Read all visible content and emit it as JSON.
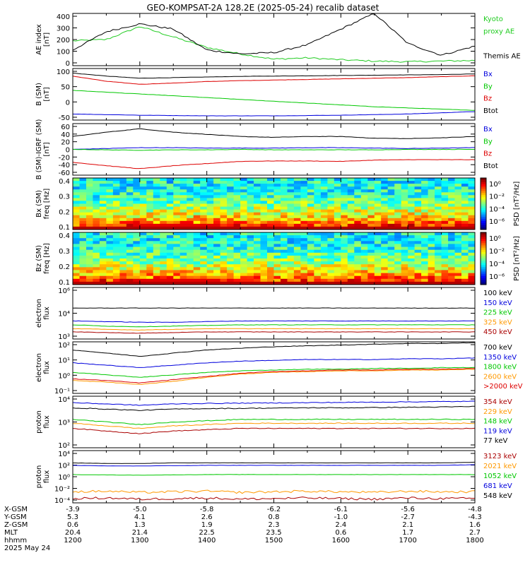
{
  "title": "GEO-KOMPSAT-2A 128.2E (2025-05-24) recalib dataset",
  "colors": {
    "black": "#000000",
    "blue": "#0000dd",
    "green": "#00c800",
    "red": "#dd0000",
    "orange": "#ff9900",
    "darkred": "#aa0000",
    "kyoto": "#22cc22"
  },
  "panels": [
    {
      "id": "ae",
      "ylabel": [
        "AE index",
        "[nT]"
      ],
      "ticks": [
        "400",
        "300",
        "200",
        "100",
        "0"
      ],
      "legend": [
        {
          "text": "Kyoto",
          "color": "kyoto"
        },
        {
          "text": "proxy AE",
          "color": "kyoto"
        },
        {
          "text": "",
          "color": "black"
        },
        {
          "text": "Themis AE",
          "color": "black"
        }
      ]
    },
    {
      "id": "bsm",
      "ylabel": [
        "B (SM)",
        "[nT]"
      ],
      "ticks": [
        "100",
        "50",
        "0",
        "-50"
      ],
      "legend": [
        {
          "text": "Bx",
          "color": "blue"
        },
        {
          "text": "By",
          "color": "green"
        },
        {
          "text": "Bz",
          "color": "red"
        },
        {
          "text": "Btot",
          "color": "black"
        }
      ]
    },
    {
      "id": "bigrf",
      "ylabel": [
        "B (SM)-IGRF (SM)",
        "[nT]"
      ],
      "ticks": [
        "60",
        "40",
        "20",
        "0",
        "-20",
        "-40",
        "-60"
      ],
      "legend": [
        {
          "text": "Bx",
          "color": "blue"
        },
        {
          "text": "By",
          "color": "green"
        },
        {
          "text": "Bz",
          "color": "red"
        },
        {
          "text": "Btot",
          "color": "black"
        }
      ]
    },
    {
      "id": "bxspec",
      "ylabel": [
        "Bx (SM)",
        "freq [Hz]"
      ],
      "ticks": [
        "0.4",
        "0.3",
        "0.2",
        "0.1"
      ],
      "cbar_ticks": [
        "10⁰",
        "10⁻²",
        "10⁻⁴",
        "10⁻⁶"
      ],
      "cbar_label": "PSD [nT²/Hz]"
    },
    {
      "id": "bzspec",
      "ylabel": [
        "Bz (SM)",
        "freq [Hz]"
      ],
      "ticks": [
        "0.4",
        "0.3",
        "0.2",
        "0.1"
      ],
      "cbar_ticks": [
        "10⁰",
        "10⁻²",
        "10⁻⁴",
        "10⁻⁶"
      ],
      "cbar_label": "PSD [nT²/Hz]"
    },
    {
      "id": "elec1",
      "ylabel": [
        "electron",
        "flux"
      ],
      "ticks": [
        "10⁶",
        "10⁴",
        "10³"
      ],
      "legend": [
        {
          "text": "100 keV",
          "color": "black"
        },
        {
          "text": "150 keV",
          "color": "blue"
        },
        {
          "text": "225 keV",
          "color": "green"
        },
        {
          "text": "325 keV",
          "color": "orange"
        },
        {
          "text": "450 keV",
          "color": "darkred"
        }
      ]
    },
    {
      "id": "elec2",
      "ylabel": [
        "electron",
        "flux"
      ],
      "ticks": [
        "10²",
        "10¹",
        "10⁰",
        "10⁻¹"
      ],
      "legend": [
        {
          "text": "700 keV",
          "color": "black"
        },
        {
          "text": "1350 keV",
          "color": "blue"
        },
        {
          "text": "1800 keV",
          "color": "green"
        },
        {
          "text": "2600 keV",
          "color": "orange"
        },
        {
          "text": ">2000 keV",
          "color": "red"
        }
      ]
    },
    {
      "id": "prot1",
      "ylabel": [
        "proton",
        "flux"
      ],
      "ticks": [
        "10⁴",
        "10³",
        "10²"
      ],
      "legend": [
        {
          "text": "354 keV",
          "color": "darkred"
        },
        {
          "text": "229 keV",
          "color": "orange"
        },
        {
          "text": "148 keV",
          "color": "green"
        },
        {
          "text": "119 keV",
          "color": "blue"
        },
        {
          "text": "77 keV",
          "color": "black"
        }
      ]
    },
    {
      "id": "prot2",
      "ylabel": [
        "proton",
        "flux"
      ],
      "ticks": [
        "10⁴",
        "10²",
        "10⁰",
        "10⁻²",
        "10⁻⁴"
      ],
      "legend": [
        {
          "text": "3123 keV",
          "color": "darkred"
        },
        {
          "text": "2021 keV",
          "color": "orange"
        },
        {
          "text": "1052 keV",
          "color": "green"
        },
        {
          "text": "681 keV",
          "color": "blue"
        },
        {
          "text": "548 keV",
          "color": "black"
        }
      ]
    }
  ],
  "xaxis": {
    "row_labels": [
      "X-GSM",
      "Y-GSM",
      "Z-GSM",
      "MLT",
      "hhmm",
      "2025 May 24"
    ],
    "columns": [
      {
        "x": "-3.9",
        "y": "5.3",
        "z": "0.6",
        "mlt": "20.4",
        "hhmm": "1200"
      },
      {
        "x": "-5.0",
        "y": "4.1",
        "z": "1.3",
        "mlt": "21.4",
        "hhmm": "1300"
      },
      {
        "x": "-5.8",
        "y": "2.6",
        "z": "1.9",
        "mlt": "22.5",
        "hhmm": "1400"
      },
      {
        "x": "-6.2",
        "y": "0.8",
        "z": "2.3",
        "mlt": "23.5",
        "hhmm": "1500"
      },
      {
        "x": "-6.1",
        "y": "-1.0",
        "z": "2.4",
        "mlt": "0.6",
        "hhmm": "1600"
      },
      {
        "x": "-5.6",
        "y": "-2.7",
        "z": "2.1",
        "mlt": "1.7",
        "hhmm": "1700"
      },
      {
        "x": "-4.8",
        "y": "-4.3",
        "z": "1.6",
        "mlt": "2.7",
        "hhmm": "1800"
      }
    ]
  },
  "chart_data": {
    "type": "line",
    "title": "GEO-KOMPSAT-2A 128.2E (2025-05-24) recalib dataset",
    "x_hhmm": [
      1200,
      1230,
      1300,
      1330,
      1400,
      1430,
      1500,
      1530,
      1600,
      1630,
      1700,
      1730,
      1800
    ],
    "xlim": [
      1200,
      1800
    ],
    "panels": [
      {
        "id": "ae",
        "ylim": [
          0,
          400
        ],
        "scale": "linear",
        "series": [
          {
            "name": "Kyoto proxy AE",
            "color": "kyoto",
            "values": [
              190,
              200,
              300,
              220,
              140,
              90,
              50,
              60,
              45,
              35,
              30,
              35,
              40
            ]
          },
          {
            "name": "Themis AE",
            "color": "black",
            "values": [
              120,
              260,
              320,
              280,
              120,
              90,
              100,
              160,
              280,
              400,
              170,
              80,
              150
            ]
          }
        ]
      },
      {
        "id": "bsm",
        "ylim": [
          -60,
          110
        ],
        "scale": "linear",
        "series": [
          {
            "name": "Btot",
            "color": "black",
            "values": [
              95,
              85,
              78,
              80,
              82,
              84,
              85,
              86,
              87,
              88,
              89,
              90,
              92
            ]
          },
          {
            "name": "Bz",
            "color": "red",
            "values": [
              85,
              68,
              58,
              62,
              67,
              70,
              72,
              74,
              76,
              78,
              80,
              83,
              86
            ]
          },
          {
            "name": "By",
            "color": "green",
            "values": [
              38,
              32,
              26,
              20,
              14,
              8,
              2,
              -4,
              -10,
              -16,
              -20,
              -24,
              -28
            ]
          },
          {
            "name": "Bx",
            "color": "blue",
            "values": [
              -40,
              -42,
              -44,
              -45,
              -46,
              -46,
              -46,
              -45,
              -44,
              -42,
              -40,
              -36,
              -32
            ]
          }
        ]
      },
      {
        "id": "bigrf",
        "ylim": [
          -60,
          60
        ],
        "scale": "linear",
        "series": [
          {
            "name": "Btot",
            "color": "black",
            "values": [
              30,
              40,
              48,
              40,
              35,
              30,
              28,
              30,
              30,
              26,
              25,
              27,
              30
            ]
          },
          {
            "name": "Bx",
            "color": "blue",
            "values": [
              0,
              2,
              4,
              4,
              3,
              3,
              3,
              4,
              4,
              3,
              2,
              3,
              4
            ]
          },
          {
            "name": "By",
            "color": "green",
            "values": [
              0,
              -1,
              -2,
              -1,
              -1,
              0,
              -1,
              -1,
              -1,
              -1,
              0,
              0,
              0
            ]
          },
          {
            "name": "Bz",
            "color": "red",
            "values": [
              -30,
              -38,
              -45,
              -38,
              -33,
              -28,
              -27,
              -27,
              -28,
              -25,
              -24,
              -24,
              -24
            ]
          }
        ]
      },
      {
        "id": "elec1",
        "scale": "log",
        "ylim_exp": [
          2,
          6
        ],
        "series": [
          {
            "name": "100 keV",
            "color": "black",
            "exp": [
              4.4,
              4.4,
              4.4,
              4.4,
              4.4,
              4.4,
              4.4,
              4.4,
              4.4,
              4.4,
              4.4,
              4.4,
              4.4
            ]
          },
          {
            "name": "150 keV",
            "color": "blue",
            "exp": [
              3.4,
              3.35,
              3.3,
              3.3,
              3.35,
              3.4,
              3.4,
              3.4,
              3.4,
              3.4,
              3.4,
              3.4,
              3.4
            ]
          },
          {
            "name": "225 keV",
            "color": "green",
            "exp": [
              3.1,
              3.0,
              2.95,
              3.0,
              3.05,
              3.1,
              3.1,
              3.1,
              3.1,
              3.1,
              3.1,
              3.1,
              3.1
            ]
          },
          {
            "name": "325 keV",
            "color": "orange",
            "exp": [
              2.8,
              2.75,
              2.7,
              2.75,
              2.8,
              2.8,
              2.8,
              2.8,
              2.8,
              2.8,
              2.8,
              2.8,
              2.8
            ]
          },
          {
            "name": "450 keV",
            "color": "darkred",
            "exp": [
              2.55,
              2.5,
              2.45,
              2.5,
              2.55,
              2.55,
              2.55,
              2.55,
              2.55,
              2.55,
              2.55,
              2.55,
              2.55
            ]
          }
        ]
      },
      {
        "id": "elec2",
        "scale": "log",
        "ylim_exp": [
          -1.2,
          2
        ],
        "series": [
          {
            "name": "700 keV",
            "color": "black",
            "exp": [
              1.5,
              1.3,
              1.1,
              1.3,
              1.5,
              1.6,
              1.7,
              1.75,
              1.8,
              1.85,
              1.9,
              1.9,
              1.95
            ]
          },
          {
            "name": "1350 keV",
            "color": "blue",
            "exp": [
              0.7,
              0.55,
              0.4,
              0.55,
              0.7,
              0.8,
              0.85,
              0.9,
              0.9,
              0.9,
              0.95,
              0.95,
              1.0
            ]
          },
          {
            "name": "1800 keV",
            "color": "green",
            "exp": [
              0.1,
              -0.05,
              -0.2,
              -0.05,
              0.1,
              0.2,
              0.25,
              0.3,
              0.3,
              0.35,
              0.35,
              0.4,
              0.4
            ]
          },
          {
            "name": "2600 keV",
            "color": "orange",
            "exp": [
              -0.4,
              -0.5,
              -0.65,
              -0.45,
              -0.2,
              0.0,
              0.1,
              0.15,
              0.2,
              0.2,
              0.25,
              0.25,
              0.3
            ]
          },
          {
            "name": ">2000 keV",
            "color": "red",
            "exp": [
              -0.3,
              -0.4,
              -0.55,
              -0.35,
              -0.15,
              0.05,
              0.15,
              0.2,
              0.25,
              0.25,
              0.3,
              0.3,
              0.35
            ]
          }
        ]
      },
      {
        "id": "prot1",
        "scale": "log",
        "ylim_exp": [
          2,
          4
        ],
        "series": [
          {
            "name": "119 keV",
            "color": "blue",
            "exp": [
              3.75,
              3.7,
              3.65,
              3.7,
              3.72,
              3.73,
              3.74,
              3.75,
              3.76,
              3.77,
              3.78,
              3.79,
              3.8
            ]
          },
          {
            "name": "77 keV",
            "color": "black",
            "exp": [
              3.55,
              3.5,
              3.45,
              3.5,
              3.52,
              3.53,
              3.54,
              3.55,
              3.55,
              3.56,
              3.57,
              3.58,
              3.6
            ]
          },
          {
            "name": "148 keV",
            "color": "green",
            "exp": [
              3.1,
              3.0,
              2.9,
              3.0,
              3.05,
              3.1,
              3.1,
              3.1,
              3.1,
              3.1,
              3.1,
              3.1,
              3.1
            ]
          },
          {
            "name": "229 keV",
            "color": "orange",
            "exp": [
              2.95,
              2.85,
              2.75,
              2.85,
              2.9,
              2.95,
              2.95,
              2.95,
              2.95,
              2.95,
              2.95,
              2.95,
              2.95
            ]
          },
          {
            "name": "354 keV",
            "color": "darkred",
            "exp": [
              2.75,
              2.65,
              2.55,
              2.65,
              2.7,
              2.75,
              2.75,
              2.75,
              2.75,
              2.75,
              2.75,
              2.75,
              2.75
            ]
          }
        ]
      },
      {
        "id": "prot2",
        "scale": "log",
        "ylim_exp": [
          -4.5,
          4
        ],
        "series": [
          {
            "name": "548 keV",
            "color": "black",
            "exp": [
              2.0,
              1.9,
              1.9,
              2.0,
              2.0,
              2.0,
              2.0,
              2.0,
              2.0,
              2.0,
              2.0,
              2.0,
              2.1
            ]
          },
          {
            "name": "681 keV",
            "color": "blue",
            "exp": [
              1.6,
              1.5,
              1.5,
              1.55,
              1.6,
              1.6,
              1.6,
              1.6,
              1.6,
              1.6,
              1.6,
              1.6,
              1.7
            ]
          },
          {
            "name": "1052 keV",
            "color": "green",
            "exp": [
              0.1,
              0.05,
              0.0,
              0.05,
              0.1,
              0.1,
              0.1,
              0.1,
              0.1,
              0.1,
              0.1,
              0.1,
              0.1
            ]
          },
          {
            "name": "2021 keV",
            "color": "orange",
            "exp": [
              -2.7,
              -2.6,
              -2.8,
              -2.7,
              -2.6,
              -2.8,
              -2.7,
              -2.6,
              -2.7,
              -2.8,
              -2.6,
              -2.7,
              -2.7
            ]
          },
          {
            "name": "3123 keV",
            "color": "darkred",
            "exp": [
              -3.8,
              -3.7,
              -3.9,
              -3.8,
              -3.7,
              -3.9,
              -3.8,
              -3.7,
              -3.8,
              -3.9,
              -3.7,
              -3.8,
              -3.8
            ]
          }
        ]
      }
    ]
  }
}
